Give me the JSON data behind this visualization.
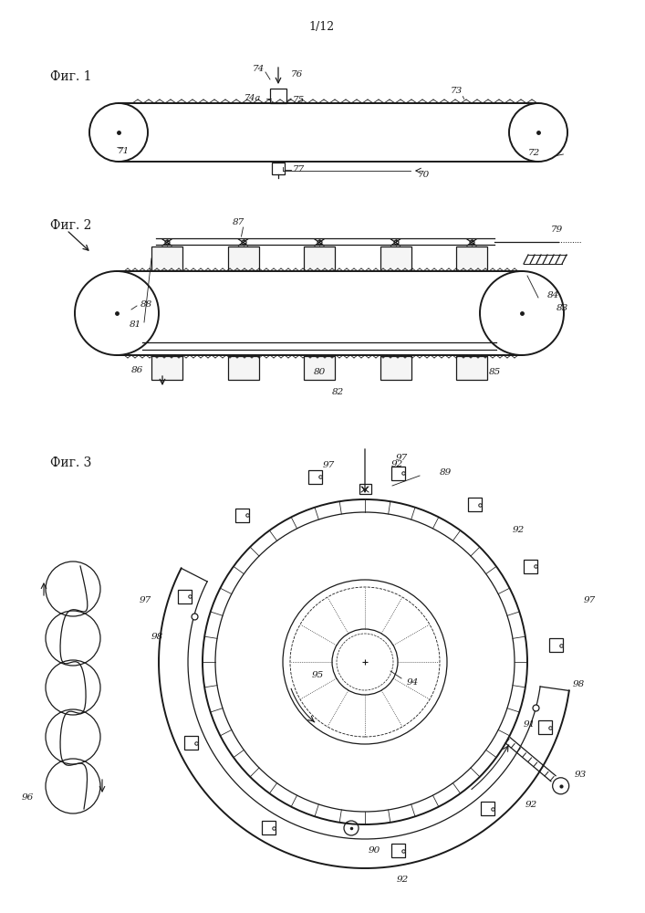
{
  "page_label": "1/12",
  "fig1_label": "Фиг. 1",
  "fig2_label": "Фиг. 2",
  "fig3_label": "Фиг. 3",
  "bg_color": "#ffffff",
  "line_color": "#1a1a1a"
}
